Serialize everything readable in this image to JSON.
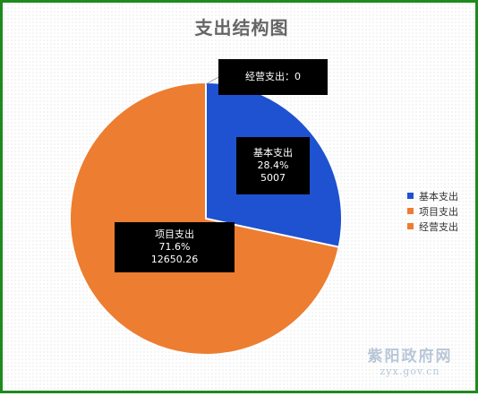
{
  "chart_data": {
    "type": "pie",
    "title": "支出结构图",
    "slices": [
      {
        "name": "基本支出",
        "value": 5007,
        "percent_label": "28.4%",
        "value_label": "5007",
        "color": "#1f52d0"
      },
      {
        "name": "项目支出",
        "value": 12650.26,
        "percent_label": "71.6%",
        "value_label": "12650.26",
        "color": "#ed7d31"
      },
      {
        "name": "经营支出",
        "value": 0,
        "percent_label": "",
        "value_label": "0",
        "color": "#ed7d31"
      }
    ],
    "zero_slice_label": "经营支出：0",
    "legend_position": "right"
  },
  "watermark": {
    "main": "紫阳政府网",
    "sub": "zyx.gov.cn"
  }
}
